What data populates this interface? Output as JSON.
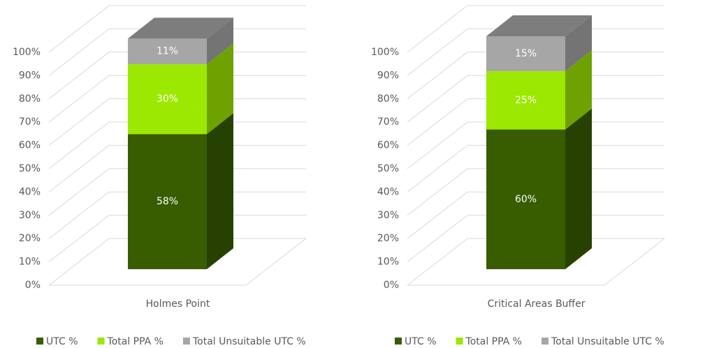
{
  "chart_data": [
    {
      "type": "bar",
      "categories": [
        "Holmes Point"
      ],
      "series": [
        {
          "name": "UTC %",
          "color": "#385d00",
          "values": [
            58
          ],
          "value_labels": [
            "58%"
          ]
        },
        {
          "name": "Total PPA %",
          "color": "#9de800",
          "values": [
            30
          ],
          "value_labels": [
            "30%"
          ]
        },
        {
          "name": "Total Unsuitable UTC %",
          "color": "#a6a6a6",
          "values": [
            11
          ],
          "value_labels": [
            "11%"
          ]
        }
      ],
      "ylim": [
        0,
        100
      ],
      "yticks": [
        {
          "value": 0,
          "label": "0%"
        },
        {
          "value": 10,
          "label": "10%"
        },
        {
          "value": 20,
          "label": "20%"
        },
        {
          "value": 30,
          "label": "30%"
        },
        {
          "value": 40,
          "label": "40%"
        },
        {
          "value": 50,
          "label": "50%"
        },
        {
          "value": 60,
          "label": "60%"
        },
        {
          "value": 70,
          "label": "70%"
        },
        {
          "value": 80,
          "label": "80%"
        },
        {
          "value": 90,
          "label": "90%"
        },
        {
          "value": 100,
          "label": "100%"
        }
      ],
      "grid": true,
      "stacked": true,
      "legend": "bottom"
    },
    {
      "type": "bar",
      "categories": [
        "Critical Areas Buffer"
      ],
      "series": [
        {
          "name": "UTC %",
          "color": "#385d00",
          "values": [
            60
          ],
          "value_labels": [
            "60%"
          ]
        },
        {
          "name": "Total PPA %",
          "color": "#9de800",
          "values": [
            25
          ],
          "value_labels": [
            "25%"
          ]
        },
        {
          "name": "Total Unsuitable UTC %",
          "color": "#a6a6a6",
          "values": [
            15
          ],
          "value_labels": [
            "15%"
          ]
        }
      ],
      "ylim": [
        0,
        100
      ],
      "yticks": [
        {
          "value": 0,
          "label": "0%"
        },
        {
          "value": 10,
          "label": "10%"
        },
        {
          "value": 20,
          "label": "20%"
        },
        {
          "value": 30,
          "label": "30%"
        },
        {
          "value": 40,
          "label": "40%"
        },
        {
          "value": 50,
          "label": "50%"
        },
        {
          "value": 60,
          "label": "60%"
        },
        {
          "value": 70,
          "label": "70%"
        },
        {
          "value": 80,
          "label": "80%"
        },
        {
          "value": 90,
          "label": "90%"
        },
        {
          "value": 100,
          "label": "100%"
        }
      ],
      "grid": true,
      "stacked": true,
      "legend": "bottom"
    }
  ]
}
